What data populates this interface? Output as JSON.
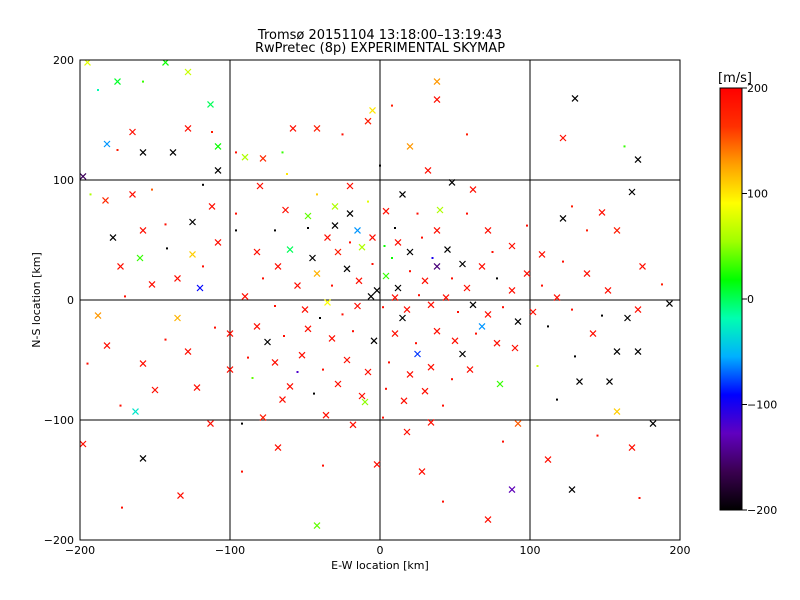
{
  "chart_data": {
    "type": "scatter",
    "title": "Tromsø 20151104 13:18:00–13:19:43",
    "subtitle": "RwPretec (8p) EXPERIMENTAL SKYMAP",
    "xlabel": "E-W location [km]",
    "ylabel": "N-S location [km]",
    "xlim": [
      -200,
      200
    ],
    "ylim": [
      -200,
      200
    ],
    "xticks": [
      "-200",
      "-100",
      "0",
      "100",
      "200"
    ],
    "yticks": [
      "-200",
      "-100",
      "0",
      "100",
      "200"
    ],
    "grid": true,
    "markers": [
      "x",
      "dot"
    ],
    "colorbar": {
      "label": "[m/s]",
      "range": [
        -200,
        200
      ],
      "ticks": [
        "200",
        "100",
        "0",
        "-100",
        "-200"
      ],
      "colormap": [
        "#000000",
        "#3a0050",
        "#6000c0",
        "#0000ff",
        "#00b0ff",
        "#00ffb0",
        "#00ff00",
        "#a0ff00",
        "#ffff00",
        "#ffa000",
        "#ff3000",
        "#ff0000"
      ]
    },
    "points": [
      {
        "x": -195,
        "y": 198,
        "v": 80
      },
      {
        "x": -175,
        "y": 182,
        "v": 10
      },
      {
        "x": -158,
        "y": 182,
        "v": 30
      },
      {
        "x": -143,
        "y": 198,
        "v": 20
      },
      {
        "x": -128,
        "y": 190,
        "v": 70
      },
      {
        "x": -188,
        "y": 175,
        "v": -20
      },
      {
        "x": -165,
        "y": 140,
        "v": 190
      },
      {
        "x": -158,
        "y": 123,
        "v": -200
      },
      {
        "x": -175,
        "y": 125,
        "v": 180
      },
      {
        "x": -182,
        "y": 130,
        "v": -60
      },
      {
        "x": -198,
        "y": 103,
        "v": -160
      },
      {
        "x": -193,
        "y": 88,
        "v": 60
      },
      {
        "x": -183,
        "y": 83,
        "v": 170
      },
      {
        "x": -165,
        "y": 88,
        "v": 190
      },
      {
        "x": -152,
        "y": 92,
        "v": 150
      },
      {
        "x": -138,
        "y": 123,
        "v": -200
      },
      {
        "x": -128,
        "y": 143,
        "v": 190
      },
      {
        "x": -112,
        "y": 140,
        "v": 180
      },
      {
        "x": -113,
        "y": 163,
        "v": 0
      },
      {
        "x": -108,
        "y": 128,
        "v": 20
      },
      {
        "x": -96,
        "y": 123,
        "v": 190
      },
      {
        "x": -90,
        "y": 119,
        "v": 60
      },
      {
        "x": -78,
        "y": 118,
        "v": 170
      },
      {
        "x": -65,
        "y": 123,
        "v": 30
      },
      {
        "x": -58,
        "y": 143,
        "v": 190
      },
      {
        "x": -42,
        "y": 143,
        "v": 180
      },
      {
        "x": -25,
        "y": 138,
        "v": 190
      },
      {
        "x": -8,
        "y": 149,
        "v": 180
      },
      {
        "x": -5,
        "y": 158,
        "v": 100
      },
      {
        "x": 8,
        "y": 162,
        "v": 180
      },
      {
        "x": 38,
        "y": 182,
        "v": 130
      },
      {
        "x": 38,
        "y": 167,
        "v": 190
      },
      {
        "x": 58,
        "y": 138,
        "v": 180
      },
      {
        "x": 130,
        "y": 168,
        "v": -200
      },
      {
        "x": 122,
        "y": 135,
        "v": 190
      },
      {
        "x": 163,
        "y": 128,
        "v": 30
      },
      {
        "x": 172,
        "y": 117,
        "v": -200
      },
      {
        "x": 168,
        "y": 90,
        "v": -200
      },
      {
        "x": 128,
        "y": 78,
        "v": 180
      },
      {
        "x": 122,
        "y": 68,
        "v": -200
      },
      {
        "x": 148,
        "y": 73,
        "v": 190
      },
      {
        "x": 138,
        "y": 58,
        "v": 180
      },
      {
        "x": 158,
        "y": 58,
        "v": 180
      },
      {
        "x": 175,
        "y": 28,
        "v": 190
      },
      {
        "x": 188,
        "y": 13,
        "v": 180
      },
      {
        "x": 193,
        "y": -3,
        "v": -200
      },
      {
        "x": 165,
        "y": -15,
        "v": -200
      },
      {
        "x": 148,
        "y": -13,
        "v": -200
      },
      {
        "x": 158,
        "y": -43,
        "v": -200
      },
      {
        "x": 172,
        "y": -43,
        "v": -200
      },
      {
        "x": 130,
        "y": -47,
        "v": -200
      },
      {
        "x": 133,
        "y": -68,
        "v": -200
      },
      {
        "x": 153,
        "y": -68,
        "v": -200
      },
      {
        "x": 118,
        "y": -83,
        "v": -200
      },
      {
        "x": 182,
        "y": -103,
        "v": -200
      },
      {
        "x": 158,
        "y": -93,
        "v": 110
      },
      {
        "x": 145,
        "y": -113,
        "v": 190
      },
      {
        "x": 168,
        "y": -123,
        "v": 190
      },
      {
        "x": 128,
        "y": -158,
        "v": -200
      },
      {
        "x": 173,
        "y": -165,
        "v": 190
      },
      {
        "x": 112,
        "y": -133,
        "v": 190
      },
      {
        "x": 92,
        "y": -103,
        "v": 150
      },
      {
        "x": 82,
        "y": -118,
        "v": 190
      },
      {
        "x": 88,
        "y": -158,
        "v": -130
      },
      {
        "x": 72,
        "y": -183,
        "v": 190
      },
      {
        "x": 42,
        "y": -168,
        "v": 190
      },
      {
        "x": 28,
        "y": -143,
        "v": 190
      },
      {
        "x": -2,
        "y": -137,
        "v": 190
      },
      {
        "x": -38,
        "y": -138,
        "v": 190
      },
      {
        "x": -42,
        "y": -188,
        "v": 40
      },
      {
        "x": -68,
        "y": -123,
        "v": 190
      },
      {
        "x": -92,
        "y": -143,
        "v": 190
      },
      {
        "x": -133,
        "y": -163,
        "v": 190
      },
      {
        "x": -158,
        "y": -132,
        "v": -200
      },
      {
        "x": -172,
        "y": -173,
        "v": 190
      },
      {
        "x": -198,
        "y": -120,
        "v": 190
      },
      {
        "x": -163,
        "y": -93,
        "v": -30
      },
      {
        "x": -173,
        "y": -88,
        "v": 190
      },
      {
        "x": -122,
        "y": -73,
        "v": 190
      },
      {
        "x": -113,
        "y": -103,
        "v": 190
      },
      {
        "x": -92,
        "y": -103,
        "v": -200
      },
      {
        "x": -78,
        "y": -98,
        "v": 180
      },
      {
        "x": -65,
        "y": -83,
        "v": 190
      },
      {
        "x": -195,
        "y": -53,
        "v": 190
      },
      {
        "x": -182,
        "y": -38,
        "v": 190
      },
      {
        "x": -158,
        "y": -53,
        "v": 190
      },
      {
        "x": -143,
        "y": -33,
        "v": 190
      },
      {
        "x": -150,
        "y": -75,
        "v": 190
      },
      {
        "x": -128,
        "y": -43,
        "v": 190
      },
      {
        "x": -110,
        "y": -23,
        "v": 190
      },
      {
        "x": -100,
        "y": -58,
        "v": 190
      },
      {
        "x": -188,
        "y": -13,
        "v": 130
      },
      {
        "x": -170,
        "y": 3,
        "v": 190
      },
      {
        "x": -152,
        "y": 13,
        "v": 190
      },
      {
        "x": -135,
        "y": 18,
        "v": 190
      },
      {
        "x": -118,
        "y": 28,
        "v": 190
      },
      {
        "x": -173,
        "y": 28,
        "v": 190
      },
      {
        "x": -160,
        "y": 35,
        "v": 30
      },
      {
        "x": -142,
        "y": 43,
        "v": -200
      },
      {
        "x": -125,
        "y": 38,
        "v": 110
      },
      {
        "x": -108,
        "y": 48,
        "v": 190
      },
      {
        "x": -96,
        "y": 58,
        "v": -200
      },
      {
        "x": -178,
        "y": 52,
        "v": -200
      },
      {
        "x": -158,
        "y": 58,
        "v": 190
      },
      {
        "x": -143,
        "y": 63,
        "v": 190
      },
      {
        "x": -125,
        "y": 65,
        "v": -200
      },
      {
        "x": -112,
        "y": 78,
        "v": 190
      },
      {
        "x": -96,
        "y": 72,
        "v": 190
      },
      {
        "x": -80,
        "y": 95,
        "v": 190
      },
      {
        "x": -63,
        "y": 75,
        "v": 190
      },
      {
        "x": -48,
        "y": 60,
        "v": -200
      },
      {
        "x": -35,
        "y": 52,
        "v": 190
      },
      {
        "x": -28,
        "y": 40,
        "v": 180
      },
      {
        "x": -20,
        "y": 48,
        "v": 190
      },
      {
        "x": -12,
        "y": 44,
        "v": 60
      },
      {
        "x": -5,
        "y": 52,
        "v": 190
      },
      {
        "x": 3,
        "y": 45,
        "v": 20
      },
      {
        "x": 12,
        "y": 48,
        "v": 190
      },
      {
        "x": 20,
        "y": 40,
        "v": -200
      },
      {
        "x": 28,
        "y": 52,
        "v": 190
      },
      {
        "x": 38,
        "y": 58,
        "v": 190
      },
      {
        "x": 45,
        "y": 42,
        "v": -200
      },
      {
        "x": -42,
        "y": 88,
        "v": 110
      },
      {
        "x": -30,
        "y": 78,
        "v": 60
      },
      {
        "x": -20,
        "y": 95,
        "v": 190
      },
      {
        "x": -8,
        "y": 82,
        "v": 80
      },
      {
        "x": 4,
        "y": 74,
        "v": 190
      },
      {
        "x": 15,
        "y": 88,
        "v": -200
      },
      {
        "x": 25,
        "y": 72,
        "v": 190
      },
      {
        "x": -60,
        "y": 42,
        "v": 0
      },
      {
        "x": -68,
        "y": 28,
        "v": 190
      },
      {
        "x": -78,
        "y": 18,
        "v": 190
      },
      {
        "x": -55,
        "y": 12,
        "v": 190
      },
      {
        "x": -42,
        "y": 22,
        "v": 120
      },
      {
        "x": -32,
        "y": 12,
        "v": 190
      },
      {
        "x": -22,
        "y": 26,
        "v": -200
      },
      {
        "x": -14,
        "y": 16,
        "v": 190
      },
      {
        "x": -5,
        "y": 30,
        "v": 190
      },
      {
        "x": 4,
        "y": 20,
        "v": 30
      },
      {
        "x": 12,
        "y": 10,
        "v": -200
      },
      {
        "x": 20,
        "y": 24,
        "v": 190
      },
      {
        "x": 30,
        "y": 16,
        "v": 190
      },
      {
        "x": 38,
        "y": 28,
        "v": -150
      },
      {
        "x": 48,
        "y": 18,
        "v": 190
      },
      {
        "x": 58,
        "y": 10,
        "v": 190
      },
      {
        "x": 68,
        "y": 28,
        "v": 190
      },
      {
        "x": 78,
        "y": 18,
        "v": -200
      },
      {
        "x": 88,
        "y": 8,
        "v": 190
      },
      {
        "x": 98,
        "y": 22,
        "v": 190
      },
      {
        "x": 108,
        "y": 12,
        "v": 190
      },
      {
        "x": 118,
        "y": 2,
        "v": 190
      },
      {
        "x": -90,
        "y": 3,
        "v": 190
      },
      {
        "x": -70,
        "y": -5,
        "v": 190
      },
      {
        "x": -50,
        "y": -8,
        "v": 190
      },
      {
        "x": -35,
        "y": -2,
        "v": 90
      },
      {
        "x": -25,
        "y": -12,
        "v": 190
      },
      {
        "x": -15,
        "y": -5,
        "v": 190
      },
      {
        "x": -6,
        "y": 3,
        "v": -200
      },
      {
        "x": 2,
        "y": -6,
        "v": 190
      },
      {
        "x": 10,
        "y": 2,
        "v": 190
      },
      {
        "x": 18,
        "y": -8,
        "v": 190
      },
      {
        "x": 26,
        "y": 4,
        "v": 190
      },
      {
        "x": 34,
        "y": -4,
        "v": 190
      },
      {
        "x": 44,
        "y": 2,
        "v": 190
      },
      {
        "x": 52,
        "y": -10,
        "v": 190
      },
      {
        "x": 62,
        "y": -4,
        "v": -200
      },
      {
        "x": 72,
        "y": -12,
        "v": 190
      },
      {
        "x": 82,
        "y": -6,
        "v": 190
      },
      {
        "x": 92,
        "y": -18,
        "v": -200
      },
      {
        "x": 102,
        "y": -10,
        "v": 190
      },
      {
        "x": 112,
        "y": -22,
        "v": -200
      },
      {
        "x": -100,
        "y": -28,
        "v": 190
      },
      {
        "x": -82,
        "y": -22,
        "v": 190
      },
      {
        "x": -64,
        "y": -30,
        "v": 190
      },
      {
        "x": -48,
        "y": -24,
        "v": 190
      },
      {
        "x": -32,
        "y": -32,
        "v": 190
      },
      {
        "x": -18,
        "y": -26,
        "v": 190
      },
      {
        "x": -4,
        "y": -34,
        "v": -200
      },
      {
        "x": 10,
        "y": -28,
        "v": 190
      },
      {
        "x": 24,
        "y": -36,
        "v": 190
      },
      {
        "x": 38,
        "y": -26,
        "v": 190
      },
      {
        "x": 50,
        "y": -34,
        "v": 190
      },
      {
        "x": 64,
        "y": -28,
        "v": 190
      },
      {
        "x": 78,
        "y": -36,
        "v": 190
      },
      {
        "x": 90,
        "y": -40,
        "v": 190
      },
      {
        "x": -88,
        "y": -48,
        "v": 190
      },
      {
        "x": -70,
        "y": -52,
        "v": 190
      },
      {
        "x": -52,
        "y": -46,
        "v": 190
      },
      {
        "x": -38,
        "y": -58,
        "v": 190
      },
      {
        "x": -22,
        "y": -50,
        "v": 190
      },
      {
        "x": -8,
        "y": -60,
        "v": 190
      },
      {
        "x": 6,
        "y": -52,
        "v": 190
      },
      {
        "x": 20,
        "y": -62,
        "v": 190
      },
      {
        "x": 34,
        "y": -56,
        "v": 190
      },
      {
        "x": 48,
        "y": -66,
        "v": 190
      },
      {
        "x": 60,
        "y": -58,
        "v": 190
      },
      {
        "x": -60,
        "y": -72,
        "v": 190
      },
      {
        "x": -44,
        "y": -78,
        "v": -200
      },
      {
        "x": -28,
        "y": -70,
        "v": 190
      },
      {
        "x": -12,
        "y": -80,
        "v": 190
      },
      {
        "x": 4,
        "y": -74,
        "v": 190
      },
      {
        "x": 16,
        "y": -84,
        "v": 190
      },
      {
        "x": 30,
        "y": -76,
        "v": 190
      },
      {
        "x": 42,
        "y": -88,
        "v": 190
      },
      {
        "x": -36,
        "y": -96,
        "v": 190
      },
      {
        "x": -18,
        "y": -104,
        "v": 190
      },
      {
        "x": 2,
        "y": -98,
        "v": 190
      },
      {
        "x": 18,
        "y": -110,
        "v": 190
      },
      {
        "x": 34,
        "y": -102,
        "v": 190
      },
      {
        "x": 122,
        "y": 32,
        "v": 190
      },
      {
        "x": 138,
        "y": 22,
        "v": 190
      },
      {
        "x": 152,
        "y": 8,
        "v": 190
      },
      {
        "x": 128,
        "y": -8,
        "v": 190
      },
      {
        "x": 142,
        "y": -28,
        "v": 190
      },
      {
        "x": 172,
        "y": -8,
        "v": 190
      },
      {
        "x": 58,
        "y": 72,
        "v": 190
      },
      {
        "x": 72,
        "y": 58,
        "v": 190
      },
      {
        "x": 88,
        "y": 45,
        "v": 190
      },
      {
        "x": 98,
        "y": 62,
        "v": 190
      },
      {
        "x": 108,
        "y": 38,
        "v": 190
      },
      {
        "x": 62,
        "y": 92,
        "v": 190
      },
      {
        "x": -70,
        "y": 58,
        "v": -200
      },
      {
        "x": -82,
        "y": 40,
        "v": 190
      },
      {
        "x": -20,
        "y": 72,
        "v": -200
      },
      {
        "x": 0,
        "y": 112,
        "v": -200
      },
      {
        "x": 32,
        "y": 108,
        "v": 190
      },
      {
        "x": 48,
        "y": 98,
        "v": -200
      },
      {
        "x": -118,
        "y": 96,
        "v": -200
      },
      {
        "x": -108,
        "y": 108,
        "v": -200
      },
      {
        "x": -30,
        "y": 62,
        "v": -200
      },
      {
        "x": 10,
        "y": 60,
        "v": -200
      },
      {
        "x": -45,
        "y": 35,
        "v": -200
      },
      {
        "x": 55,
        "y": 30,
        "v": -200
      },
      {
        "x": 75,
        "y": 40,
        "v": 190
      },
      {
        "x": -2,
        "y": 8,
        "v": -200
      },
      {
        "x": 15,
        "y": -15,
        "v": -200
      },
      {
        "x": -40,
        "y": -15,
        "v": -200
      },
      {
        "x": 55,
        "y": -45,
        "v": -200
      },
      {
        "x": -75,
        "y": -35,
        "v": -200
      },
      {
        "x": 35,
        "y": 35,
        "v": -100
      },
      {
        "x": -15,
        "y": 58,
        "v": -60
      },
      {
        "x": 25,
        "y": -45,
        "v": -80
      },
      {
        "x": -55,
        "y": -60,
        "v": -120
      },
      {
        "x": 68,
        "y": -22,
        "v": -60
      },
      {
        "x": -120,
        "y": 10,
        "v": -90
      },
      {
        "x": 8,
        "y": 35,
        "v": 20
      },
      {
        "x": -48,
        "y": 70,
        "v": 40
      },
      {
        "x": 40,
        "y": 75,
        "v": 60
      },
      {
        "x": -85,
        "y": -65,
        "v": 40
      },
      {
        "x": 80,
        "y": -70,
        "v": 30
      },
      {
        "x": -10,
        "y": -85,
        "v": 50
      },
      {
        "x": 105,
        "y": -55,
        "v": 70
      },
      {
        "x": -135,
        "y": -15,
        "v": 120
      },
      {
        "x": 20,
        "y": 128,
        "v": 130
      },
      {
        "x": -62,
        "y": 105,
        "v": 100
      }
    ]
  }
}
